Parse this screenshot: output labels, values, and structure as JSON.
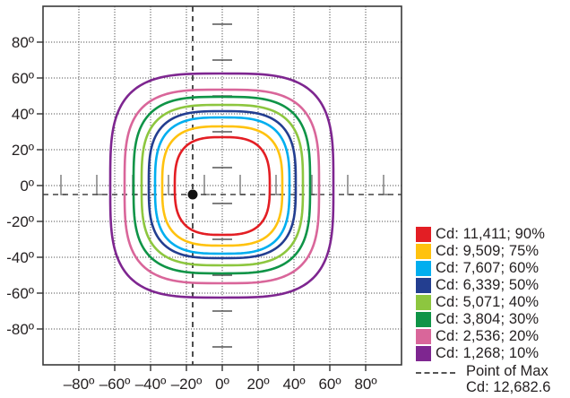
{
  "chart_data": {
    "type": "contour",
    "title": "",
    "xlabel": "",
    "ylabel": "",
    "xlim": [
      -100,
      100
    ],
    "ylim": [
      -100,
      100
    ],
    "x_ticks": [
      -80,
      -60,
      -40,
      -20,
      0,
      20,
      40,
      60,
      80
    ],
    "y_ticks": [
      80,
      60,
      40,
      20,
      0,
      -20,
      -40,
      -60,
      -80
    ],
    "x_tick_labels": [
      "–80º",
      "–60º",
      "–40º",
      "–20º",
      "0º",
      "20º",
      "40º",
      "60º",
      "80º"
    ],
    "y_tick_labels": [
      "80º",
      "60º",
      "40º",
      "20º",
      "0º",
      "-20º",
      "-40º",
      "-60º",
      "-80º"
    ],
    "grid": true,
    "legend_position": "lower right, outside plot",
    "point_of_max": {
      "x": -16.5,
      "y": -5,
      "label": "Point of Max",
      "value_label": "Cd: 12,682.6",
      "cd": 12682.6
    },
    "series": [
      {
        "name": "Cd: 11,411; 90%",
        "cd": 11411,
        "percent": 90,
        "color": "#E31E24",
        "x_range": [
          -26.5,
          26.5
        ],
        "y_range": [
          -27.5,
          27
        ]
      },
      {
        "name": "Cd: 9,509; 75%",
        "cd": 9509,
        "percent": 75,
        "color": "#FFC20E",
        "x_range": [
          -33.5,
          33.5
        ],
        "y_range": [
          -33.5,
          33
        ]
      },
      {
        "name": "Cd: 7,607; 60%",
        "cd": 7607,
        "percent": 60,
        "color": "#00AEEF",
        "x_range": [
          -37.5,
          37.5
        ],
        "y_range": [
          -38,
          38
        ]
      },
      {
        "name": "Cd: 6,339; 50%",
        "cd": 6339,
        "percent": 50,
        "color": "#233E90",
        "x_range": [
          -41,
          41
        ],
        "y_range": [
          -40.5,
          41.5
        ]
      },
      {
        "name": "Cd: 5,071; 40%",
        "cd": 5071,
        "percent": 40,
        "color": "#8DC63F",
        "x_range": [
          -45,
          45
        ],
        "y_range": [
          -44.5,
          45
        ]
      },
      {
        "name": "Cd: 3,804; 30%",
        "cd": 3804,
        "percent": 30,
        "color": "#0F9447",
        "x_range": [
          -49.5,
          49
        ],
        "y_range": [
          -49,
          49.5
        ]
      },
      {
        "name": "Cd: 2,536; 20%",
        "cd": 2536,
        "percent": 20,
        "color": "#D9669A",
        "x_range": [
          -54.5,
          54
        ],
        "y_range": [
          -54.5,
          53.5
        ]
      },
      {
        "name": "Cd: 1,268; 10%",
        "cd": 1268,
        "percent": 10,
        "color": "#7E2690",
        "x_range": [
          -62.5,
          62
        ],
        "y_range": [
          -62.5,
          62.5
        ]
      }
    ]
  },
  "legend": {
    "items": [
      {
        "label": "Cd: 11,411; 90%",
        "color": "#E31E24"
      },
      {
        "label": "Cd: 9,509; 75%",
        "color": "#FFC20E"
      },
      {
        "label": "Cd: 7,607; 60%",
        "color": "#00AEEF"
      },
      {
        "label": "Cd: 6,339; 50%",
        "color": "#233E90"
      },
      {
        "label": "Cd: 5,071; 40%",
        "color": "#8DC63F"
      },
      {
        "label": "Cd: 3,804; 30%",
        "color": "#0F9447"
      },
      {
        "label": "Cd: 2,536; 20%",
        "color": "#D9669A"
      },
      {
        "label": "Cd: 1,268; 10%",
        "color": "#7E2690"
      }
    ],
    "max_line1": "Point of Max",
    "max_line2": "Cd: 12,682.6"
  }
}
